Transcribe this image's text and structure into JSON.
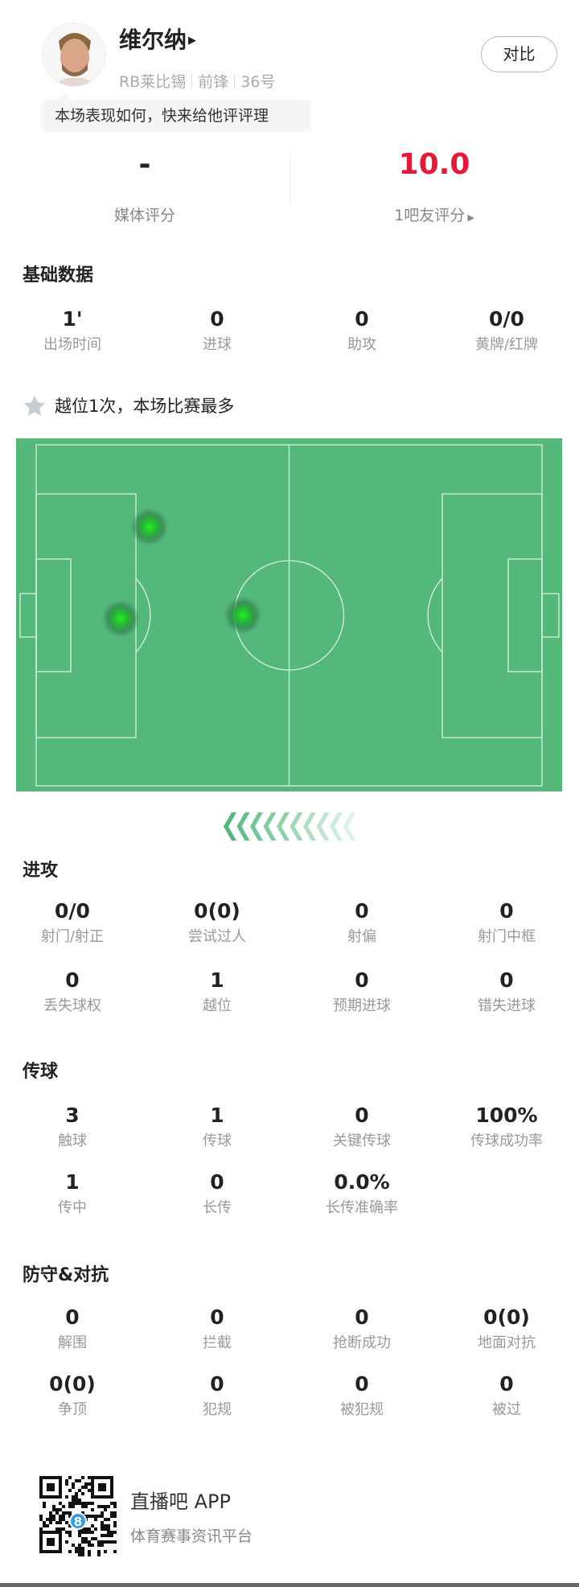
{
  "player": {
    "name": "维尔纳",
    "team": "RB莱比锡",
    "position": "前锋",
    "number": "36号"
  },
  "compare_label": "对比",
  "rating_prompt": "本场表现如何，快来给他评评理",
  "ratings": {
    "media": {
      "value": "-",
      "label": "媒体评分"
    },
    "fans": {
      "value": "10.0",
      "label": "1吧友评分"
    },
    "accent_color": "#e8183a"
  },
  "basic": {
    "title": "基础数据",
    "stats": [
      {
        "value": "1'",
        "label": "出场时间"
      },
      {
        "value": "0",
        "label": "进球"
      },
      {
        "value": "0",
        "label": "助攻"
      },
      {
        "value": "0/0",
        "label": "黄牌/红牌"
      }
    ]
  },
  "highlight": {
    "icon": "star-icon",
    "text": "越位1次，本场比赛最多"
  },
  "pitch": {
    "color": "#54b87b",
    "heat_color": "#22dd22"
  },
  "attack": {
    "title": "进攻",
    "stats": [
      {
        "value": "0/0",
        "label": "射门/射正"
      },
      {
        "value": "0(0)",
        "label": "尝试过人"
      },
      {
        "value": "0",
        "label": "射偏"
      },
      {
        "value": "0",
        "label": "射门中框"
      },
      {
        "value": "0",
        "label": "丢失球权"
      },
      {
        "value": "1",
        "label": "越位"
      },
      {
        "value": "0",
        "label": "预期进球"
      },
      {
        "value": "0",
        "label": "错失进球"
      }
    ]
  },
  "passing": {
    "title": "传球",
    "stats": [
      {
        "value": "3",
        "label": "触球"
      },
      {
        "value": "1",
        "label": "传球"
      },
      {
        "value": "0",
        "label": "关键传球"
      },
      {
        "value": "100%",
        "label": "传球成功率"
      },
      {
        "value": "1",
        "label": "传中"
      },
      {
        "value": "0",
        "label": "长传"
      },
      {
        "value": "0.0%",
        "label": "长传准确率"
      }
    ]
  },
  "defense": {
    "title": "防守&对抗",
    "stats": [
      {
        "value": "0",
        "label": "解围"
      },
      {
        "value": "0",
        "label": "拦截"
      },
      {
        "value": "0",
        "label": "抢断成功"
      },
      {
        "value": "0(0)",
        "label": "地面对抗"
      },
      {
        "value": "0(0)",
        "label": "争顶"
      },
      {
        "value": "0",
        "label": "犯规"
      },
      {
        "value": "0",
        "label": "被犯规"
      },
      {
        "value": "0",
        "label": "被过"
      }
    ]
  },
  "footer": {
    "app_name": "直播吧 APP",
    "tagline": "体育赛事资讯平台",
    "qr_badge": "8"
  }
}
